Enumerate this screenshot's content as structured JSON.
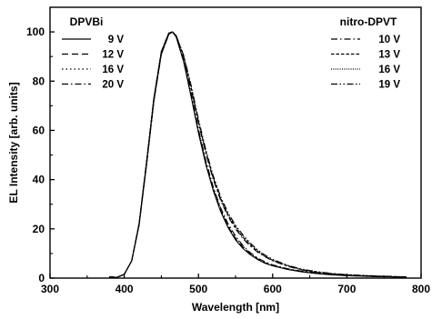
{
  "chart_data": {
    "type": "line",
    "xlabel": "Wavelength  [nm]",
    "ylabel": "EL Intensity  [arb. units]",
    "xlim": [
      300,
      800
    ],
    "ylim": [
      0,
      110
    ],
    "xticks": [
      "300",
      "400",
      "500",
      "600",
      "700",
      "800"
    ],
    "yticks": [
      "0",
      "20",
      "40",
      "60",
      "80",
      "100"
    ],
    "grid": false,
    "legends": [
      {
        "placement": "top-left",
        "title": "DPVBi",
        "entries": [
          {
            "label": "9 V",
            "dash": "solid"
          },
          {
            "label": "12 V",
            "dash": "dashed"
          },
          {
            "label": "16 V",
            "dash": "dotted"
          },
          {
            "label": "20 V",
            "dash": "dash-dot"
          }
        ]
      },
      {
        "placement": "top-right",
        "title": "nitro-DPVT",
        "entries": [
          {
            "label": "10 V",
            "dash": "dash-dot"
          },
          {
            "label": "13 V",
            "dash": "short-dash"
          },
          {
            "label": "16 V",
            "dash": "dense-dot"
          },
          {
            "label": "19 V",
            "dash": "dash-dot-dot"
          }
        ]
      }
    ],
    "x": [
      380,
      390,
      400,
      410,
      420,
      430,
      440,
      450,
      460,
      465,
      470,
      480,
      490,
      500,
      510,
      520,
      530,
      540,
      550,
      560,
      570,
      580,
      590,
      600,
      620,
      640,
      660,
      680,
      700,
      720,
      740,
      760,
      780
    ],
    "series": [
      {
        "group": "DPVBi",
        "label": "9 V",
        "values": [
          0.5,
          0.3,
          1.5,
          7,
          22,
          47,
          73,
          92,
          99.5,
          100,
          98,
          88,
          74,
          59,
          46,
          35.5,
          27,
          20.5,
          15.5,
          12,
          9.5,
          7.5,
          6,
          5,
          3.5,
          2.5,
          1.8,
          1.3,
          1,
          0.8,
          0.6,
          0.5,
          0.4
        ]
      },
      {
        "group": "DPVBi",
        "label": "12 V",
        "values": [
          0.5,
          0.3,
          1.5,
          7,
          22,
          47,
          73,
          92,
          99.5,
          100,
          98,
          88,
          74,
          59.5,
          46.5,
          36,
          27.5,
          21,
          16,
          12.5,
          9.8,
          7.7,
          6.2,
          5.1,
          3.6,
          2.6,
          1.9,
          1.4,
          1,
          0.8,
          0.6,
          0.5,
          0.4
        ]
      },
      {
        "group": "DPVBi",
        "label": "16 V",
        "values": [
          0.5,
          0.3,
          1.5,
          7,
          22,
          47,
          73,
          92,
          99.5,
          100,
          98,
          88,
          74.5,
          60,
          47,
          36.5,
          28,
          21.5,
          16.5,
          12.8,
          10,
          7.9,
          6.4,
          5.2,
          3.7,
          2.7,
          2,
          1.5,
          1.1,
          0.9,
          0.7,
          0.5,
          0.4
        ]
      },
      {
        "group": "DPVBi",
        "label": "20 V",
        "values": [
          0.5,
          0.3,
          1.5,
          7,
          22,
          47,
          73,
          92,
          99.5,
          100,
          98,
          88.5,
          75,
          60.5,
          47.5,
          37,
          28.5,
          22,
          17,
          13.2,
          10.3,
          8.1,
          6.6,
          5.4,
          3.8,
          2.8,
          2.1,
          1.5,
          1.1,
          0.9,
          0.7,
          0.5,
          0.4
        ]
      },
      {
        "group": "nitro-DPVT",
        "label": "10 V",
        "values": [
          0.5,
          0.3,
          1.5,
          7,
          21.5,
          46,
          72,
          91,
          99,
          100,
          98.5,
          90,
          77,
          63,
          50.5,
          40,
          31.5,
          25,
          20,
          16,
          13,
          10.5,
          8.6,
          7,
          4.8,
          3.3,
          2.3,
          1.7,
          1.3,
          1,
          0.8,
          0.6,
          0.5
        ]
      },
      {
        "group": "nitro-DPVT",
        "label": "13 V",
        "values": [
          0.5,
          0.3,
          1.5,
          7,
          21.5,
          46,
          72,
          91,
          99,
          100,
          98.5,
          90,
          77.5,
          63.5,
          51,
          40.5,
          32,
          25.5,
          20.5,
          16.5,
          13.4,
          10.8,
          8.8,
          7.2,
          5,
          3.4,
          2.4,
          1.8,
          1.3,
          1,
          0.8,
          0.6,
          0.5
        ]
      },
      {
        "group": "nitro-DPVT",
        "label": "16 V",
        "values": [
          0.5,
          0.3,
          1.5,
          7,
          21.5,
          46,
          72,
          91,
          99,
          100,
          98.5,
          90.5,
          78,
          64,
          51.5,
          41,
          32.5,
          26,
          21,
          17,
          13.8,
          11.1,
          9,
          7.4,
          5.1,
          3.5,
          2.5,
          1.8,
          1.4,
          1.1,
          0.8,
          0.6,
          0.5
        ]
      },
      {
        "group": "nitro-DPVT",
        "label": "19 V",
        "values": [
          0.5,
          0.3,
          1.5,
          7,
          21.5,
          46,
          72,
          91,
          99,
          100,
          98.5,
          90.5,
          78.5,
          64.5,
          52,
          41.5,
          33,
          26.5,
          21.5,
          17.5,
          14.2,
          11.4,
          9.3,
          7.6,
          5.2,
          3.6,
          2.6,
          1.9,
          1.4,
          1.1,
          0.9,
          0.7,
          0.5
        ]
      }
    ]
  }
}
